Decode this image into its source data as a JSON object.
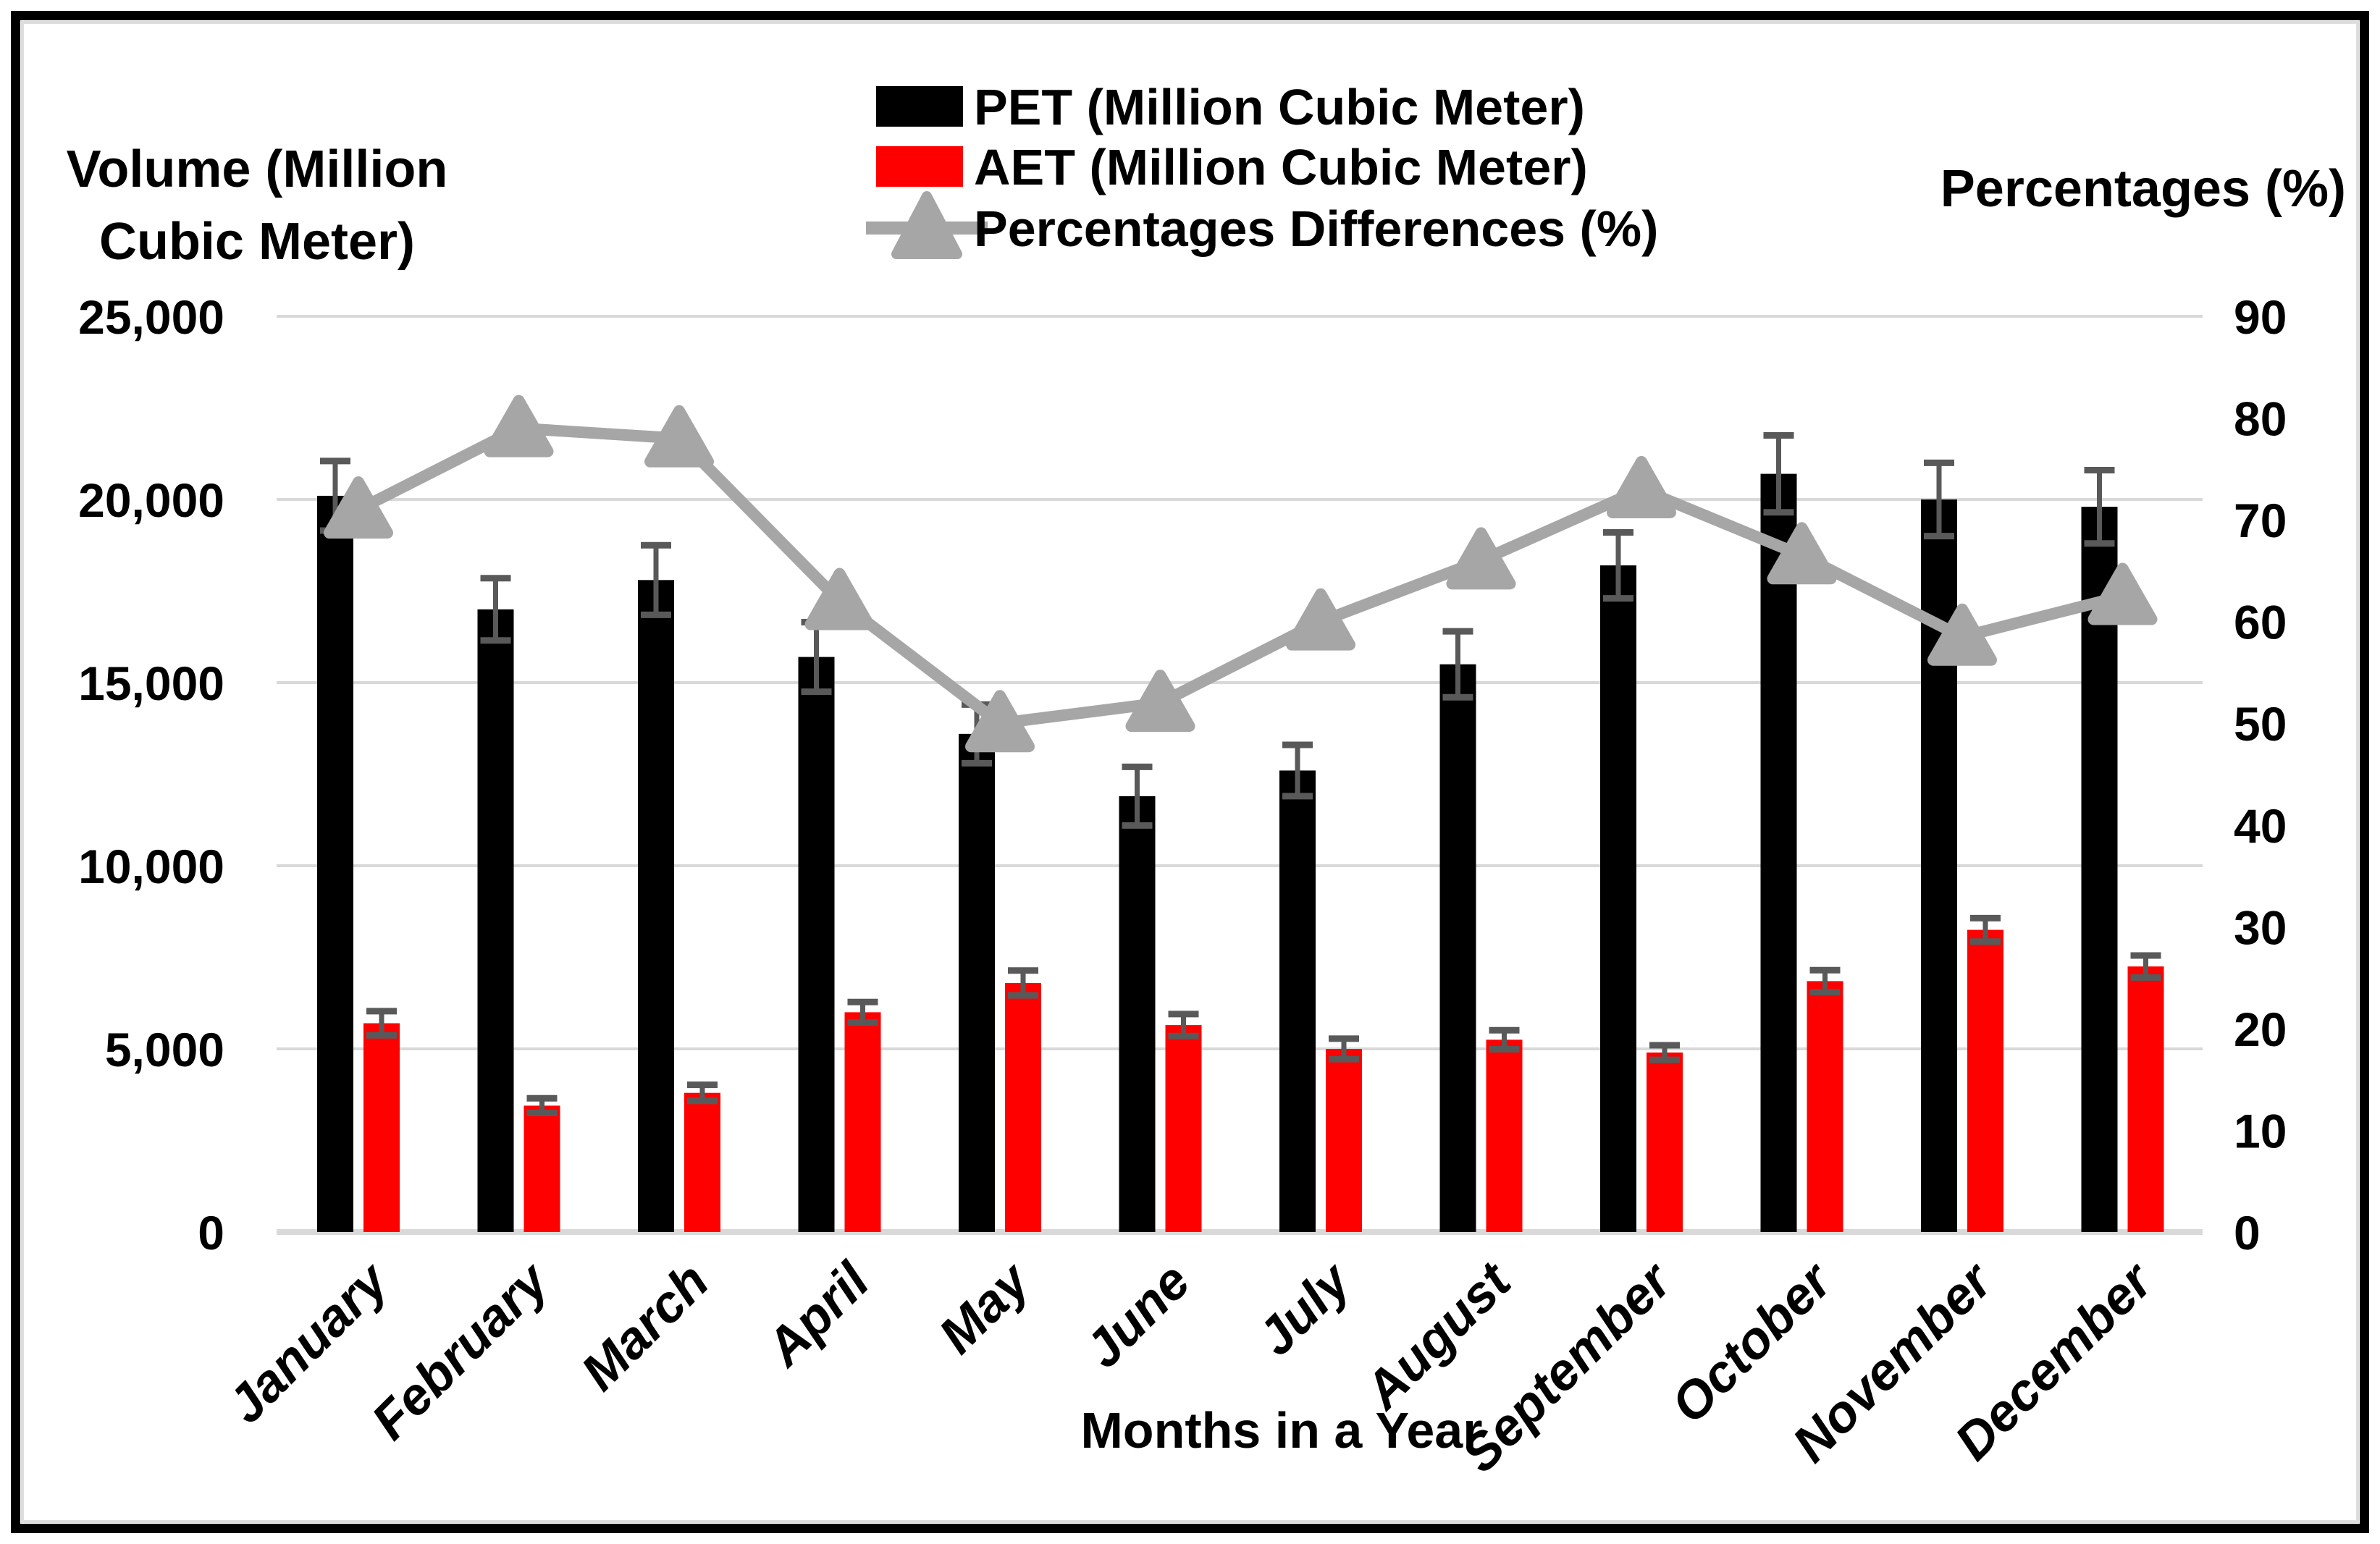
{
  "figure": {
    "frame_color": "#000000",
    "inner_edge_color": "#dedede",
    "background": "#ffffff"
  },
  "chart_data": {
    "type": "bar",
    "subtype": "combo-bar-line-dual-axis",
    "categories": [
      "January",
      "February",
      "March",
      "April",
      "May",
      "June",
      "July",
      "August",
      "September",
      "October",
      "November",
      "December"
    ],
    "series": [
      {
        "name": "PET (Million Cubic Meter)",
        "type": "bar",
        "color": "#000000",
        "axis": "left",
        "values": [
          20100,
          17000,
          17800,
          15700,
          13600,
          11900,
          12600,
          15500,
          18200,
          20700,
          20000,
          19800
        ],
        "error_bars": [
          950,
          850,
          950,
          950,
          800,
          800,
          700,
          900,
          900,
          1050,
          1000,
          1000
        ]
      },
      {
        "name": "AET (Million Cubic Meter)",
        "type": "bar",
        "color": "#ff0000",
        "axis": "left",
        "values": [
          5700,
          3450,
          3800,
          6000,
          6800,
          5650,
          5000,
          5250,
          4900,
          6850,
          8250,
          7250
        ],
        "error_bars": [
          330,
          200,
          220,
          280,
          340,
          300,
          280,
          260,
          200,
          300,
          320,
          300
        ]
      },
      {
        "name": "Percentages Differences (%)",
        "type": "line",
        "marker": "triangle-up",
        "color": "#a6a6a6",
        "axis": "right",
        "values": [
          71,
          79,
          78,
          62,
          50,
          52,
          60,
          66,
          73,
          66.5,
          58.5,
          62.5
        ]
      }
    ],
    "left_axis": {
      "title": "Volume (Million Cubic Meter)",
      "title_line1": "Volume (Million",
      "title_line2": "Cubic Meter)",
      "min": 0,
      "max": 25000,
      "tick_step": 5000,
      "tick_labels": [
        "0",
        "5,000",
        "10,000",
        "15,000",
        "20,000",
        "25,000"
      ]
    },
    "right_axis": {
      "title": "Percentages (%)",
      "min": 0,
      "max": 90,
      "tick_step": 10,
      "tick_labels": [
        "0",
        "10",
        "20",
        "30",
        "40",
        "50",
        "60",
        "70",
        "80",
        "90"
      ]
    },
    "x_axis": {
      "title": "Months in a Year"
    },
    "grid": "horizontal",
    "gridline_color": "#d9d9d9",
    "error_bar_color": "#595959",
    "legend_position": "top-center"
  }
}
